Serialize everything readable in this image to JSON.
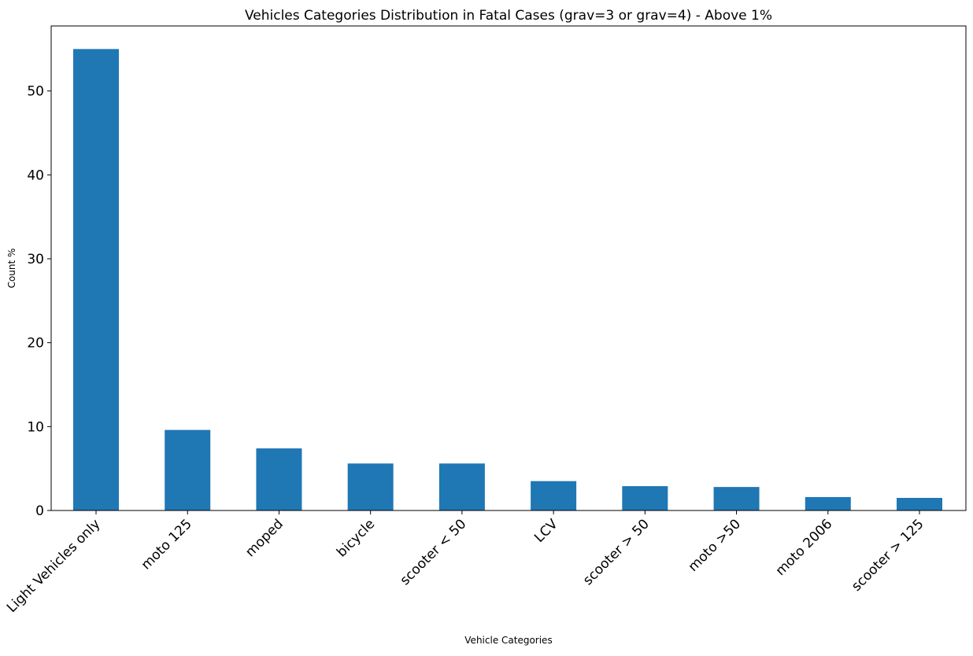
{
  "chart_data": {
    "type": "bar",
    "title": "Vehicles Categories Distribution in Fatal Cases (grav=3 or grav=4) - Above 1%",
    "xlabel": "Vehicle Categories",
    "ylabel": "Count %",
    "categories": [
      "Light Vehicles only",
      "moto 125",
      "moped",
      "bicycle",
      "scooter < 50",
      "LCV",
      "scooter > 50",
      "moto >50",
      "moto 2006",
      "scooter > 125"
    ],
    "values": [
      55.0,
      9.6,
      7.4,
      5.6,
      5.6,
      3.5,
      2.9,
      2.8,
      1.6,
      1.5
    ],
    "ylim": [
      0,
      57.75
    ],
    "yticks": [
      0,
      10,
      20,
      30,
      40,
      50
    ],
    "grid": false,
    "bar_color": "#1f77b4"
  }
}
